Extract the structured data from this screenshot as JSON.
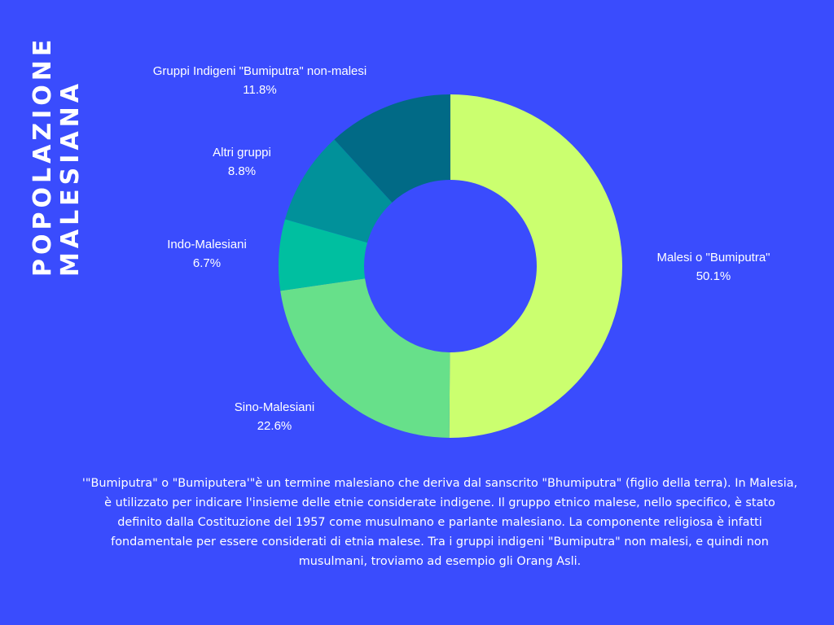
{
  "title": {
    "line1": "POPOLAZIONE",
    "line2": "MALESIANA"
  },
  "chart_data": {
    "type": "pie",
    "donut": true,
    "slices": [
      {
        "label": "Malesi o \"Bumiputra\"",
        "value": 50.1,
        "value_label": "50.1%",
        "color": "#cbff6f"
      },
      {
        "label": "Sino-Malesiani",
        "value": 22.6,
        "value_label": "22.6%",
        "color": "#67e08a"
      },
      {
        "label": "Indo-Malesiani",
        "value": 6.7,
        "value_label": "6.7%",
        "color": "#00bfa0"
      },
      {
        "label": "Altri gruppi",
        "value": 8.8,
        "value_label": "8.8%",
        "color": "#01919a"
      },
      {
        "label": "Gruppi Indigeni \"Bumiputra\" non-malesi",
        "value": 11.8,
        "value_label": "11.8%",
        "color": "#016a86"
      }
    ]
  },
  "footer": {
    "text": "'\"Bumiputra\" o \"Bumiputera'\"è un termine  malesiano che deriva dal sanscrito \"Bhumiputra\" (figlio della terra). In Malesia, è utilizzato per indicare  l'insieme delle etnie considerate indigene. Il gruppo etnico malese, nello specifico, è stato definito dalla Costituzione del 1957 come musulmano e parlante malesiano. La componente religiosa è infatti fondamentale per essere considerati di etnia malese. Tra i gruppi indigeni \"Bumiputra\" non malesi, e quindi non musulmani, troviamo ad esempio gli Orang Asli."
  }
}
